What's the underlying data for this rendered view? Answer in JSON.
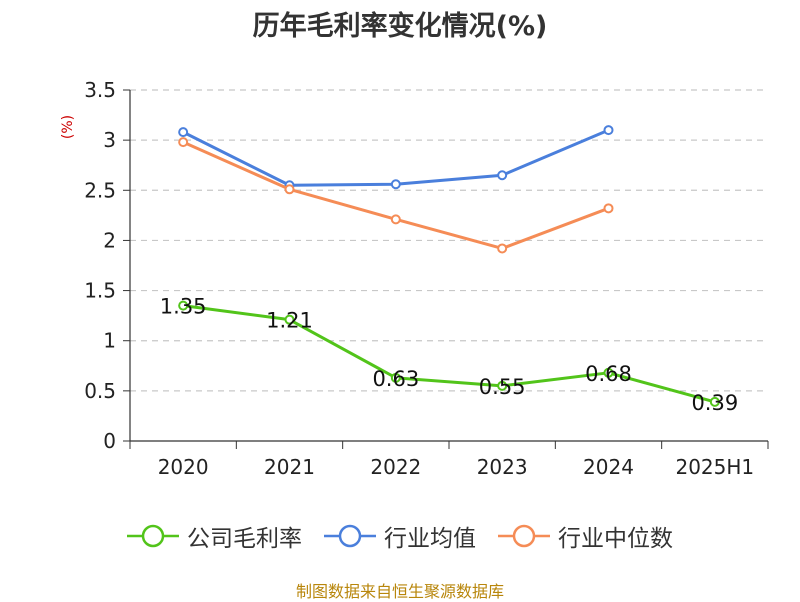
{
  "chart_data": {
    "type": "line",
    "title": "历年毛利率变化情况(%)",
    "ylabel": "(%)",
    "categories": [
      "2020",
      "2021",
      "2022",
      "2023",
      "2024",
      "2025H1"
    ],
    "ylim": [
      0,
      3.5
    ],
    "yticks": [
      "0",
      "0.5",
      "1",
      "1.5",
      "2",
      "2.5",
      "3",
      "3.5"
    ],
    "grid": true,
    "legend_position": "bottom",
    "series": [
      {
        "name": "公司毛利率",
        "color": "#52c41a",
        "values": [
          1.35,
          1.21,
          0.63,
          0.55,
          0.68,
          0.39
        ],
        "labels": [
          "1.35",
          "1.21",
          "0.63",
          "0.55",
          "0.68",
          "0.39"
        ]
      },
      {
        "name": "行业均值",
        "color": "#4a7fdc",
        "values": [
          3.08,
          2.55,
          2.56,
          2.65,
          3.1,
          null
        ],
        "labels": []
      },
      {
        "name": "行业中位数",
        "color": "#f58c56",
        "values": [
          2.98,
          2.51,
          2.21,
          1.92,
          2.32,
          null
        ],
        "labels": []
      }
    ]
  },
  "footer": {
    "source": "制图数据来自恒生聚源数据库"
  }
}
